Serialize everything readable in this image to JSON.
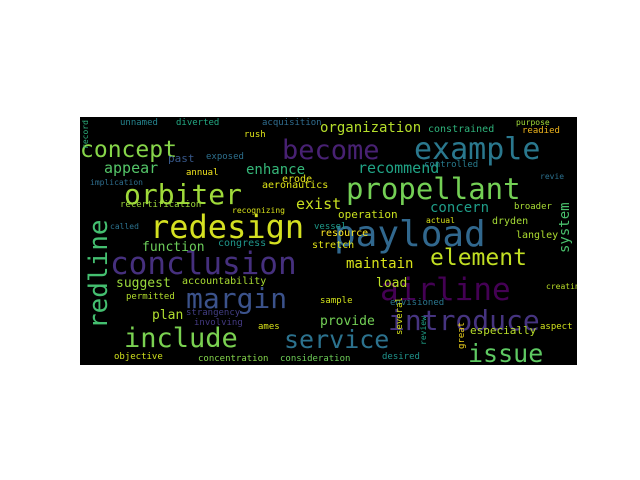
{
  "words": [
    {
      "text": "conclusion",
      "color": "#46307e"
    },
    {
      "text": "redesign",
      "color": "#d4e021"
    },
    {
      "text": "payload",
      "color": "#31688e"
    },
    {
      "text": "propellant",
      "color": "#74d055"
    },
    {
      "text": "example",
      "color": "#2a788e"
    },
    {
      "text": "become",
      "color": "#482173"
    },
    {
      "text": "orbiter",
      "color": "#9fda3a"
    },
    {
      "text": "margin",
      "color": "#3b528b"
    },
    {
      "text": "airline",
      "color": "#440154"
    },
    {
      "text": "introduce",
      "color": "#463480"
    },
    {
      "text": "include",
      "color": "#7ad151"
    },
    {
      "text": "service",
      "color": "#2c728e"
    },
    {
      "text": "issue",
      "color": "#5ec962"
    },
    {
      "text": "concept",
      "color": "#86d549"
    },
    {
      "text": "element",
      "color": "#c2df23"
    },
    {
      "text": "redline",
      "color": "#44bf70"
    },
    {
      "text": "organization",
      "color": "#b5de2b"
    },
    {
      "text": "recommend",
      "color": "#20a486"
    },
    {
      "text": "enhance",
      "color": "#35b779"
    },
    {
      "text": "appear",
      "color": "#54c568"
    },
    {
      "text": "exist",
      "color": "#c8e020"
    },
    {
      "text": "concern",
      "color": "#1f9e89"
    },
    {
      "text": "operation",
      "color": "#cae11f"
    },
    {
      "text": "function",
      "color": "#6ccd5a"
    },
    {
      "text": "maintain",
      "color": "#d8e219"
    },
    {
      "text": "suggest",
      "color": "#9bd93c"
    },
    {
      "text": "plan",
      "color": "#b0dd2f"
    },
    {
      "text": "provide",
      "color": "#73d056"
    },
    {
      "text": "load",
      "color": "#bddf26"
    },
    {
      "text": "system",
      "color": "#4ac16d"
    },
    {
      "text": "resource",
      "color": "#fde725"
    },
    {
      "text": "stretch",
      "color": "#e2e418"
    },
    {
      "text": "dryden",
      "color": "#a5db36"
    },
    {
      "text": "langley",
      "color": "#addc30"
    },
    {
      "text": "broader",
      "color": "#a8db34"
    },
    {
      "text": "especially",
      "color": "#b8de29"
    },
    {
      "text": "aeronautics",
      "color": "#dde318"
    },
    {
      "text": "accountability",
      "color": "#aadc32"
    },
    {
      "text": "concentration",
      "color": "#84d44b"
    },
    {
      "text": "consideration",
      "color": "#6ece58"
    },
    {
      "text": "objective",
      "color": "#d0e11c"
    },
    {
      "text": "unnamed",
      "color": "#25848e"
    },
    {
      "text": "diverted",
      "color": "#23a983"
    },
    {
      "text": "acquisition",
      "color": "#2f6c8e"
    },
    {
      "text": "constrained",
      "color": "#2fb47c"
    },
    {
      "text": "readied",
      "color": "#ecb31c"
    },
    {
      "text": "purpose",
      "color": "#a0da39"
    },
    {
      "text": "controlled",
      "color": "#287c8e"
    },
    {
      "text": "recertification",
      "color": "#9dd93b"
    },
    {
      "text": "recognizing",
      "color": "#d8e219"
    },
    {
      "text": "erode",
      "color": "#e5e419"
    },
    {
      "text": "annual",
      "color": "#f1e51d"
    },
    {
      "text": "past",
      "color": "#38598c"
    },
    {
      "text": "exposed",
      "color": "#2d708e"
    },
    {
      "text": "rush",
      "color": "#dde318"
    },
    {
      "text": "vessel",
      "color": "#1e9b8a"
    },
    {
      "text": "congress",
      "color": "#1f968b"
    },
    {
      "text": "permitted",
      "color": "#b2dd2d"
    },
    {
      "text": "ames",
      "color": "#dae319"
    },
    {
      "text": "strangency",
      "color": "#433e85"
    },
    {
      "text": "involving",
      "color": "#443a83"
    },
    {
      "text": "sample",
      "color": "#d2e21b"
    },
    {
      "text": "envisioned",
      "color": "#2a768e"
    },
    {
      "text": "several",
      "color": "#d5e21a"
    },
    {
      "text": "desired",
      "color": "#1f948c"
    },
    {
      "text": "great",
      "color": "#ecd11c"
    },
    {
      "text": "aspect",
      "color": "#d0e11c"
    },
    {
      "text": "creating",
      "color": "#bade28"
    },
    {
      "text": "implication",
      "color": "#2e6e8e"
    },
    {
      "text": "called",
      "color": "#2c728e"
    },
    {
      "text": "actual",
      "color": "#d8e219"
    },
    {
      "text": "record",
      "color": "#2db27d"
    },
    {
      "text": "review",
      "color": "#1fa188"
    },
    {
      "text": "revie",
      "color": "#2c718e"
    }
  ]
}
